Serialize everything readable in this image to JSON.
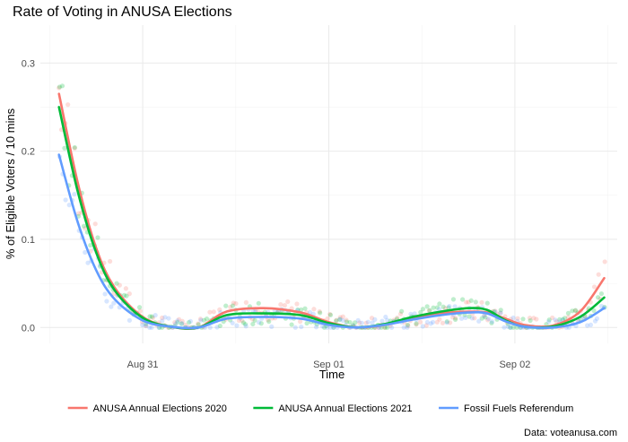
{
  "chart_data": {
    "type": "scatter",
    "title": "Rate of Voting in ANUSA Elections",
    "xlabel": "Time",
    "ylabel": "% of Eligible Voters / 10 mins",
    "caption": "Data: voteanusa.com",
    "x_start_date": "Aug 30 13:00",
    "x_ticks": [
      "Aug 31",
      "Sep 01",
      "Sep 02"
    ],
    "y_ticks": [
      "0.0",
      "0.1",
      "0.2",
      "0.3"
    ],
    "xlim": [
      -0.55,
      2.55
    ],
    "ylim": [
      -0.018,
      0.343
    ],
    "x_unit": "days since Aug 31 00:00",
    "grid": true,
    "legend_position": "bottom",
    "smooth_overlay": true,
    "series": [
      {
        "name": "ANUSA Annual Elections 2020",
        "color": "#F8766D",
        "x": [
          -0.45,
          -0.35,
          -0.25,
          -0.15,
          0.0,
          0.15,
          0.3,
          0.45,
          0.65,
          0.85,
          1.0,
          1.15,
          1.3,
          1.45,
          1.6,
          1.75,
          1.85,
          1.95,
          2.05,
          2.2,
          2.35,
          2.48
        ],
        "y": [
          0.265,
          0.165,
          0.09,
          0.045,
          0.012,
          0.001,
          0.0,
          0.018,
          0.022,
          0.017,
          0.006,
          0.0,
          0.003,
          0.01,
          0.016,
          0.018,
          0.017,
          0.01,
          0.003,
          0.002,
          0.018,
          0.056
        ]
      },
      {
        "name": "ANUSA Annual Elections 2021",
        "color": "#00BA38",
        "x": [
          -0.45,
          -0.35,
          -0.25,
          -0.15,
          0.0,
          0.15,
          0.3,
          0.45,
          0.65,
          0.85,
          1.0,
          1.15,
          1.3,
          1.45,
          1.6,
          1.75,
          1.85,
          1.95,
          2.05,
          2.2,
          2.35,
          2.48
        ],
        "y": [
          0.25,
          0.155,
          0.085,
          0.042,
          0.011,
          0.001,
          0.0,
          0.014,
          0.016,
          0.014,
          0.005,
          0.0,
          0.004,
          0.012,
          0.018,
          0.022,
          0.02,
          0.008,
          0.001,
          0.001,
          0.012,
          0.034
        ]
      },
      {
        "name": "Fossil Fuels Referendum",
        "color": "#619CFF",
        "x": [
          -0.45,
          -0.35,
          -0.25,
          -0.15,
          0.0,
          0.15,
          0.3,
          0.45,
          0.65,
          0.85,
          1.0,
          1.15,
          1.3,
          1.45,
          1.6,
          1.75,
          1.85,
          1.95,
          2.05,
          2.2,
          2.35,
          2.48
        ],
        "y": [
          0.196,
          0.12,
          0.065,
          0.032,
          0.008,
          0.001,
          0.0,
          0.01,
          0.012,
          0.01,
          0.003,
          0.0,
          0.003,
          0.009,
          0.014,
          0.017,
          0.016,
          0.007,
          0.001,
          0.0,
          0.006,
          0.022
        ]
      }
    ]
  }
}
